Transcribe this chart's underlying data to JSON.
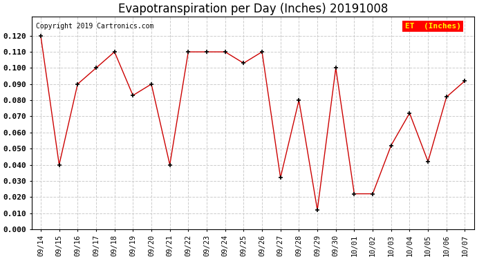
{
  "title": "Evapotranspiration per Day (Inches) 20191008",
  "copyright_text": "Copyright 2019 Cartronics.com",
  "legend_label": "ET  (Inches)",
  "legend_bg": "#ff0000",
  "legend_text_color": "#ffff00",
  "x_labels": [
    "09/14",
    "09/15",
    "09/16",
    "09/17",
    "09/18",
    "09/19",
    "09/20",
    "09/21",
    "09/22",
    "09/23",
    "09/24",
    "09/25",
    "09/26",
    "09/27",
    "09/28",
    "09/29",
    "09/30",
    "10/01",
    "10/02",
    "10/03",
    "10/04",
    "10/05",
    "10/06",
    "10/07"
  ],
  "y_values": [
    0.12,
    0.04,
    0.09,
    0.1,
    0.11,
    0.083,
    0.09,
    0.04,
    0.11,
    0.11,
    0.11,
    0.103,
    0.11,
    0.032,
    0.08,
    0.012,
    0.1,
    0.022,
    0.022,
    0.052,
    0.072,
    0.042,
    0.082,
    0.092
  ],
  "ylim": [
    0.0,
    0.132
  ],
  "yticks": [
    0.0,
    0.01,
    0.02,
    0.03,
    0.04,
    0.05,
    0.06,
    0.07,
    0.08,
    0.09,
    0.1,
    0.11,
    0.12
  ],
  "line_color": "#cc0000",
  "marker_color": "#000000",
  "grid_color": "#cccccc",
  "bg_color": "#ffffff",
  "plot_bg_color": "#ffffff",
  "title_fontsize": 12,
  "copyright_fontsize": 7,
  "tick_fontsize": 7.5,
  "ytick_fontsize": 8
}
